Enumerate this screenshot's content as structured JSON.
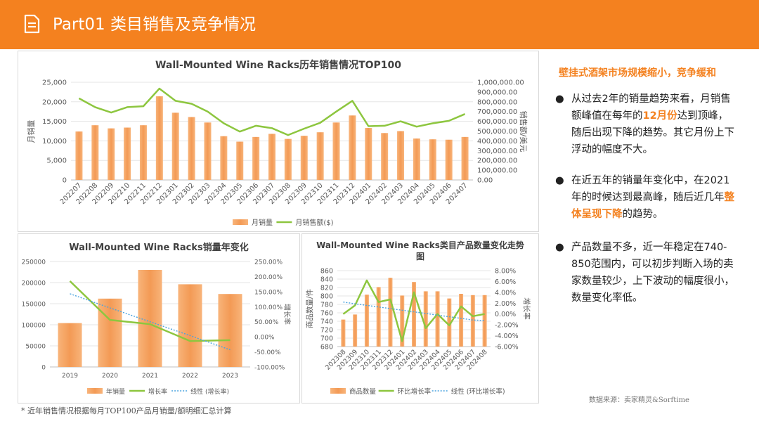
{
  "header": {
    "title": "Part01 类目销售及竞争情况",
    "icon": "document-icon"
  },
  "chart_data": [
    {
      "type": "bar",
      "title": "Wall-Mounted Wine Racks历年销售情况TOP100",
      "categories": [
        "202207",
        "202208",
        "202209",
        "202210",
        "202211",
        "202212",
        "202301",
        "202302",
        "202303",
        "202304",
        "202305",
        "202306",
        "202307",
        "202308",
        "202309",
        "202310",
        "202311",
        "202312",
        "202401",
        "202402",
        "202403",
        "202404",
        "202405",
        "202406",
        "202407"
      ],
      "series": [
        {
          "name": "月销量",
          "type": "bar",
          "axis": "left",
          "values": [
            12400,
            14000,
            13200,
            13400,
            14000,
            21400,
            17200,
            16100,
            14700,
            11200,
            9800,
            11000,
            11800,
            10500,
            11300,
            12200,
            14700,
            16500,
            13300,
            12000,
            12500,
            10600,
            10400,
            10300,
            11000
          ]
        },
        {
          "name": "月销售额($)",
          "type": "line",
          "axis": "right",
          "values": [
            835000,
            745000,
            690000,
            745000,
            755000,
            935000,
            810000,
            780000,
            700000,
            580000,
            495000,
            555000,
            530000,
            460000,
            525000,
            585000,
            700000,
            810000,
            550000,
            555000,
            600000,
            545000,
            580000,
            605000,
            675000
          ]
        }
      ],
      "ylabel": "月销量",
      "y2label": "销售额/美元",
      "ylim": [
        0,
        25000
      ],
      "y2lim": [
        0,
        1000000
      ],
      "yticks": [
        "0",
        "5,000",
        "10,000",
        "15,000",
        "20,000",
        "25,000"
      ],
      "y2ticks": [
        "0.00",
        "100,000.00",
        "200,000.00",
        "300,000.00",
        "400,000.00",
        "500,000.00",
        "600,000.00",
        "700,000.00",
        "800,000.00",
        "900,000.00",
        "1,000,000.00"
      ],
      "legend": "bottom",
      "colors": {
        "bar": "#f4a460",
        "line": "#8dc63f"
      }
    },
    {
      "type": "bar",
      "title": "Wall-Mounted Wine Racks销量年变化",
      "categories": [
        "2019",
        "2020",
        "2021",
        "2022",
        "2023"
      ],
      "series": [
        {
          "name": "年销量",
          "type": "bar",
          "axis": "left",
          "values": [
            104000,
            162000,
            230000,
            196000,
            173000
          ]
        },
        {
          "name": "增长率",
          "type": "line",
          "axis": "right",
          "values": [
            185,
            56,
            42,
            -14,
            -11
          ]
        },
        {
          "name": "线性 (增长率)",
          "type": "trendline",
          "axis": "right",
          "values": [
            143,
            96,
            50,
            4,
            -43
          ]
        }
      ],
      "ylabel": "",
      "y2label": "增长率",
      "ylim": [
        0,
        250000
      ],
      "y2lim": [
        -100,
        250
      ],
      "yticks": [
        "0",
        "50000",
        "100000",
        "150000",
        "200000",
        "250000"
      ],
      "y2ticks": [
        "-100.00%",
        "-50.00%",
        "0.00%",
        "50.00%",
        "100.00%",
        "150.00%",
        "200.00%",
        "250.00%"
      ],
      "legend": "bottom"
    },
    {
      "type": "bar",
      "title": "Wall-Mounted Wine Racks类目产品数量变化走势图",
      "categories": [
        "202308",
        "202309",
        "202310",
        "202311",
        "202312",
        "202401",
        "202402",
        "202403",
        "202404",
        "202405",
        "202406",
        "202407",
        "202408"
      ],
      "series": [
        {
          "name": "商品数量",
          "type": "bar",
          "axis": "left",
          "values": [
            744,
            756,
            803,
            821,
            843,
            801,
            833,
            811,
            811,
            794,
            805,
            802,
            802
          ]
        },
        {
          "name": "环比增长率",
          "type": "line",
          "axis": "right",
          "values": [
            0.0,
            1.6,
            6.2,
            2.2,
            2.7,
            -5.0,
            4.0,
            -2.6,
            0.0,
            -2.1,
            1.4,
            -0.4,
            0.0
          ]
        },
        {
          "name": "线性 (环比增长率)",
          "type": "trendline",
          "axis": "right",
          "values": [
            2.2,
            1.9,
            1.6,
            1.3,
            1.0,
            0.7,
            0.4,
            0.1,
            -0.2,
            -0.5,
            -0.8,
            -1.1,
            -1.2
          ]
        }
      ],
      "ylabel": "商品数量/件",
      "y2label": "增长率",
      "ylim": [
        680,
        860
      ],
      "y2lim": [
        -6,
        8
      ],
      "yticks": [
        "680",
        "700",
        "720",
        "740",
        "760",
        "780",
        "800",
        "820",
        "840",
        "860"
      ],
      "y2ticks": [
        "-6.00%",
        "-4.00%",
        "-2.00%",
        "0.00%",
        "2.00%",
        "4.00%",
        "6.00%",
        "8.00%"
      ],
      "legend": "bottom"
    }
  ],
  "right": {
    "title": "壁挂式酒架市场规模缩小，竞争缓和",
    "bullets": [
      {
        "parts": [
          {
            "t": "从过去2年的销量趋势来看，月销售额峰值在每年的"
          },
          {
            "t": "12月份",
            "hl": true
          },
          {
            "t": "达到顶峰，随后出现下降的趋势。其它月份上下浮动的幅度不大。"
          }
        ]
      },
      {
        "parts": [
          {
            "t": "在近五年的销量年变化中，在2021年的时候达到最高峰，随后近几年"
          },
          {
            "t": "整体呈现下降",
            "hl": true
          },
          {
            "t": "的趋势。"
          }
        ]
      },
      {
        "parts": [
          {
            "t": "产品数量不多，近一年稳定在740-850范围内，可以初步判断入场的卖家数量较少，上下波动的幅度很小，数量变化率低。"
          }
        ]
      }
    ]
  },
  "source": "数据来源：卖家精灵&Sorftime",
  "footnote": "* 近年销售情况根据每月TOP100产品月销量/额明细汇总计算"
}
